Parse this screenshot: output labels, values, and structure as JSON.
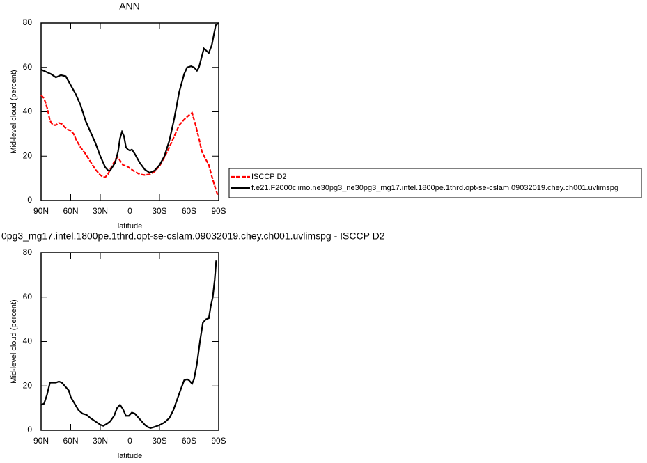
{
  "chart_data": [
    {
      "type": "line",
      "title": "ANN",
      "xlabel": "latitude",
      "ylabel": "Mid-level cloud (percent)",
      "xlim": [
        90,
        -90
      ],
      "ylim": [
        0,
        80
      ],
      "xticks": [
        {
          "value": 90,
          "label": "90N"
        },
        {
          "value": 60,
          "label": "60N"
        },
        {
          "value": 30,
          "label": "30N"
        },
        0,
        {
          "value": -30,
          "label": "30S"
        },
        {
          "value": -60,
          "label": "60S"
        },
        {
          "value": -90,
          "label": "90S"
        }
      ],
      "yticks": [
        0,
        20,
        40,
        60,
        80
      ],
      "series": [
        {
          "name": "ISCCP D2",
          "color": "#ff0000",
          "dashed": true,
          "x": [
            90,
            87,
            84,
            81,
            78,
            75,
            72,
            69,
            66,
            63,
            60,
            57,
            54,
            50,
            45,
            40,
            35,
            30,
            27,
            25,
            22,
            20,
            17,
            14,
            12,
            10,
            7,
            3,
            0,
            -5,
            -10,
            -15,
            -20,
            -25,
            -30,
            -35,
            -40,
            -45,
            -50,
            -55,
            -60,
            -63,
            -66,
            -70,
            -73,
            -77,
            -80,
            -83,
            -87,
            -89
          ],
          "values": [
            47.5,
            46,
            42,
            36,
            34,
            34,
            35,
            34.5,
            33,
            32,
            31.5,
            30,
            27,
            24,
            21,
            17.5,
            14,
            11.5,
            10.5,
            10.5,
            12,
            14,
            16.5,
            19,
            19.5,
            18,
            16,
            15.5,
            14.5,
            13,
            11.8,
            11.5,
            11.8,
            13,
            15.5,
            19.5,
            24,
            29,
            34,
            36.5,
            38.5,
            39.5,
            35,
            28,
            22,
            18.5,
            16,
            11,
            5,
            2.5
          ]
        },
        {
          "name": "f.e21.F2000climo.ne30pg3_ne30pg3_mg17.intel.1800pe.1thrd.opt-se-cslam.09032019.chey.ch001.uvlimspg",
          "color": "#000000",
          "dashed": false,
          "x": [
            90,
            85,
            80,
            75,
            70,
            65,
            60,
            55,
            50,
            45,
            40,
            35,
            30,
            25,
            22,
            20,
            15,
            12,
            10,
            8,
            6,
            4,
            2,
            0,
            -2,
            -5,
            -10,
            -15,
            -20,
            -25,
            -30,
            -35,
            -40,
            -45,
            -50,
            -55,
            -58,
            -62,
            -65,
            -68,
            -70,
            -75,
            -80,
            -83,
            -87,
            -90
          ],
          "values": [
            59,
            58,
            57,
            55.5,
            56.5,
            56,
            52,
            48,
            43,
            36,
            31,
            26,
            20,
            15,
            13.5,
            13.5,
            17,
            22,
            28,
            31,
            29,
            24,
            23,
            22.5,
            23,
            21,
            17,
            14,
            12.5,
            13.5,
            16,
            20,
            27,
            37,
            49,
            57,
            60,
            60.5,
            60,
            58.5,
            60,
            68.5,
            66.5,
            70,
            79,
            80
          ]
        }
      ]
    },
    {
      "type": "line",
      "title": "0pg3_mg17.intel.1800pe.1thrd.opt-se-cslam.09032019.chey.ch001.uvlimspg - ISCCP D2",
      "xlabel": "latitude",
      "ylabel": "Mid-level cloud (percent)",
      "xlim": [
        90,
        -90
      ],
      "ylim": [
        0,
        80
      ],
      "xticks": [
        {
          "value": 90,
          "label": "90N"
        },
        {
          "value": 60,
          "label": "60N"
        },
        {
          "value": 30,
          "label": "30N"
        },
        0,
        {
          "value": -30,
          "label": "30S"
        },
        {
          "value": -60,
          "label": "60S"
        },
        {
          "value": -90,
          "label": "90S"
        }
      ],
      "yticks": [
        0,
        20,
        40,
        60,
        80
      ],
      "series": [
        {
          "color": "#000000",
          "dashed": false,
          "x": [
            90,
            87,
            84,
            81,
            78,
            75,
            72,
            69,
            66,
            62,
            60,
            56,
            52,
            48,
            44,
            40,
            35,
            30,
            27,
            23,
            20,
            16,
            13,
            10,
            7,
            4,
            1,
            -2,
            -5,
            -8,
            -12,
            -15,
            -18,
            -21,
            -25,
            -30,
            -35,
            -40,
            -44,
            -48,
            -52,
            -55,
            -58,
            -60,
            -63,
            -65,
            -68,
            -71,
            -74,
            -77,
            -80,
            -82,
            -84,
            -86,
            -87.5
          ],
          "values": [
            11.5,
            12,
            16,
            21.5,
            21.5,
            21.5,
            22,
            21.5,
            20,
            18,
            15,
            12,
            9,
            7.5,
            7,
            5.5,
            4,
            2.5,
            2,
            3,
            4,
            6.5,
            10,
            11.5,
            9.5,
            6.5,
            6.5,
            8,
            7.5,
            6,
            4,
            2.5,
            1.5,
            1,
            1.5,
            2.3,
            3.5,
            5.5,
            9,
            14,
            19,
            22.5,
            23,
            22.5,
            21,
            23,
            30,
            40,
            48.5,
            50,
            50.5,
            56,
            60,
            68,
            76.5
          ]
        }
      ]
    }
  ]
}
